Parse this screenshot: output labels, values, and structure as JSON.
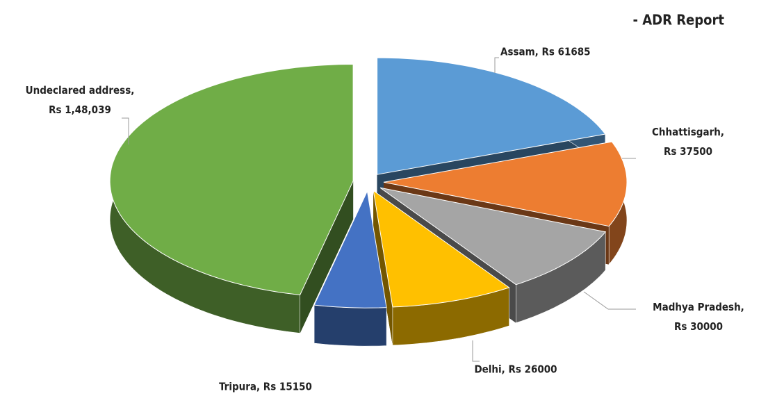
{
  "chart_data": {
    "type": "pie3d",
    "title": "- ADR Report",
    "values": [
      61685,
      37500,
      30000,
      26000,
      15150,
      148039
    ],
    "value_labels": [
      "Assam, Rs 61685",
      "Chhattisgarh, Rs 37500",
      "Madhya Pradesh, Rs 30000",
      "Delhi, Rs 26000",
      "Tripura,  Rs 15150",
      "Undeclared address, Rs 1,48,039"
    ],
    "colors": [
      "#5b9bd5",
      "#ed7d31",
      "#a5a5a5",
      "#ffc000",
      "#4472c4",
      "#70ad47"
    ]
  }
}
